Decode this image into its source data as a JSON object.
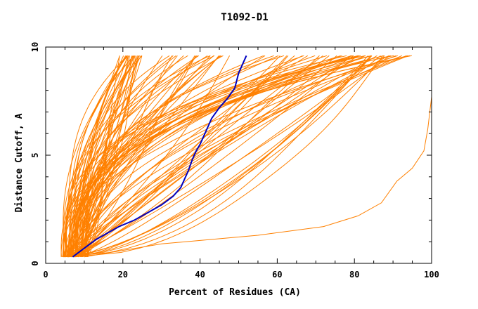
{
  "chart_data": {
    "type": "line",
    "title": "T1092-D1",
    "xlabel": "Percent of Residues (CA)",
    "ylabel": "Distance Cutoff, A",
    "xlim": [
      0,
      100
    ],
    "ylim": [
      0,
      10
    ],
    "x_ticks": [
      "0",
      "20",
      "40",
      "60",
      "80",
      "100"
    ],
    "y_ticks": [
      "0",
      "5",
      "10"
    ],
    "grid": false,
    "colors": {
      "group": "#ff8000",
      "highlight": "#0000c0",
      "axis": "#000000"
    },
    "highlight_series": {
      "x": [
        7,
        10,
        13,
        15,
        19,
        23,
        27,
        30,
        33,
        35,
        36,
        37,
        38,
        39,
        40,
        41,
        42,
        43,
        45,
        47,
        49,
        50,
        51,
        52
      ],
      "y": [
        0.3,
        0.7,
        1.1,
        1.3,
        1.7,
        2.0,
        2.4,
        2.7,
        3.1,
        3.5,
        3.9,
        4.3,
        4.8,
        5.2,
        5.5,
        5.9,
        6.3,
        6.7,
        7.2,
        7.6,
        8.1,
        8.8,
        9.2,
        9.6
      ]
    }
  }
}
